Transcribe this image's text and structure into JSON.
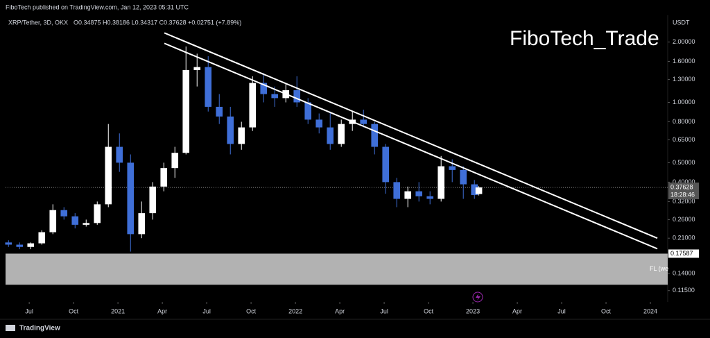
{
  "header": {
    "publisher": "FiboTech published on TradingView.com, Jan 12, 2023 05:31 UTC",
    "footer": "TradingView"
  },
  "chart_data": {
    "type": "candlestick",
    "title": "XRP/Tether, 3D, OKX",
    "ohlc_text": "O0.34875 H0.38186 L0.34317 C0.37628 +0.02751 (+7.89%)",
    "watermark": "FiboTech_Trade",
    "y_unit": "USDT",
    "log_scale": true,
    "up_color": "#ffffff",
    "down_color": "#3f6fd8",
    "x": [
      4.6,
      5.35,
      6.1,
      6.85,
      7.6,
      8.35,
      9.1,
      9.85,
      10.6,
      11.35,
      12.1,
      12.85,
      13.6,
      14.35,
      15.1,
      15.85,
      16.6,
      17.35,
      18.1,
      18.85,
      19.6,
      20.35,
      21.1,
      21.85,
      22.6,
      23.35,
      24.1,
      24.85,
      25.6,
      26.35,
      27.1,
      27.85,
      28.6,
      29.35,
      30.1,
      30.85,
      31.6,
      32.35,
      33.1,
      33.85,
      34.6,
      35.35,
      36.1,
      36.4
    ],
    "open": [
      0.2,
      0.195,
      0.19,
      0.198,
      0.225,
      0.29,
      0.27,
      0.245,
      0.25,
      0.31,
      0.6,
      0.5,
      0.22,
      0.28,
      0.38,
      0.47,
      0.56,
      1.45,
      1.5,
      0.95,
      0.85,
      0.62,
      0.75,
      1.25,
      1.1,
      1.05,
      1.15,
      1.0,
      0.82,
      0.75,
      0.62,
      0.78,
      0.82,
      0.78,
      0.6,
      0.4,
      0.33,
      0.36,
      0.34,
      0.33,
      0.48,
      0.46,
      0.39,
      0.34875
    ],
    "high": [
      0.205,
      0.2,
      0.2,
      0.23,
      0.31,
      0.3,
      0.28,
      0.26,
      0.32,
      0.78,
      0.7,
      0.55,
      0.32,
      0.4,
      0.5,
      0.6,
      1.9,
      1.75,
      1.7,
      1.1,
      0.95,
      0.8,
      1.35,
      1.4,
      1.2,
      1.25,
      1.35,
      1.05,
      0.88,
      0.9,
      0.82,
      0.9,
      0.92,
      0.8,
      0.62,
      0.42,
      0.38,
      0.4,
      0.36,
      0.54,
      0.52,
      0.48,
      0.41,
      0.38186
    ],
    "low": [
      0.19,
      0.185,
      0.185,
      0.195,
      0.22,
      0.26,
      0.235,
      0.24,
      0.245,
      0.3,
      0.45,
      0.18,
      0.21,
      0.26,
      0.36,
      0.42,
      0.55,
      1.2,
      0.9,
      0.78,
      0.55,
      0.58,
      0.72,
      1.0,
      0.95,
      1.0,
      0.95,
      0.78,
      0.7,
      0.58,
      0.6,
      0.72,
      0.75,
      0.55,
      0.35,
      0.3,
      0.3,
      0.32,
      0.31,
      0.32,
      0.4,
      0.33,
      0.33,
      0.34317
    ],
    "close": [
      0.195,
      0.19,
      0.198,
      0.225,
      0.29,
      0.27,
      0.245,
      0.25,
      0.31,
      0.6,
      0.5,
      0.22,
      0.28,
      0.38,
      0.47,
      0.56,
      1.45,
      1.5,
      0.95,
      0.85,
      0.62,
      0.75,
      1.25,
      1.1,
      1.05,
      1.15,
      1.0,
      0.82,
      0.75,
      0.62,
      0.78,
      0.82,
      0.78,
      0.6,
      0.4,
      0.33,
      0.36,
      0.34,
      0.33,
      0.48,
      0.46,
      0.39,
      0.345,
      0.37628
    ],
    "last_price": {
      "value": 0.37628,
      "label": "0.37628"
    },
    "countdown": "18:28:46",
    "trendlines": [
      {
        "x": [
          15.14,
          48.47
        ],
        "y": [
          2.22,
          0.21
        ]
      },
      {
        "x": [
          15.14,
          48.47
        ],
        "y": [
          1.97,
          0.186
        ]
      }
    ],
    "zone": {
      "top": {
        "value": 0.17587,
        "label": "0.17587"
      },
      "bottom": 0.123,
      "label": "FL (we"
    },
    "xlim": [
      4.4,
      49.17
    ],
    "ylim": [
      0.101,
      2.72
    ],
    "xticks": [
      {
        "value": 6,
        "label": "Jul"
      },
      {
        "value": 9,
        "label": "Oct"
      },
      {
        "value": 12,
        "label": "2021"
      },
      {
        "value": 15,
        "label": "Apr"
      },
      {
        "value": 18,
        "label": "Jul"
      },
      {
        "value": 21,
        "label": "Oct"
      },
      {
        "value": 24,
        "label": "2022"
      },
      {
        "value": 27,
        "label": "Apr"
      },
      {
        "value": 30,
        "label": "Jul"
      },
      {
        "value": 33,
        "label": "Oct"
      },
      {
        "value": 36,
        "label": "2023"
      },
      {
        "value": 39,
        "label": "Apr"
      },
      {
        "value": 42,
        "label": "Jul"
      },
      {
        "value": 45,
        "label": "Oct"
      },
      {
        "value": 48,
        "label": "2024"
      }
    ],
    "yticks": [
      {
        "value": 2,
        "label": "2.00000"
      },
      {
        "value": 1.6,
        "label": "1.60000"
      },
      {
        "value": 1.3,
        "label": "1.30000"
      },
      {
        "value": 1,
        "label": "1.00000"
      },
      {
        "value": 0.8,
        "label": "0.80000"
      },
      {
        "value": 0.65,
        "label": "0.65000"
      },
      {
        "value": 0.5,
        "label": "0.50000"
      },
      {
        "value": 0.4,
        "label": "0.40000"
      },
      {
        "value": 0.32,
        "label": "0.32000"
      },
      {
        "value": 0.26,
        "label": "0.26000"
      },
      {
        "value": 0.21,
        "label": "0.21000"
      },
      {
        "value": 0.14,
        "label": "0.14000"
      },
      {
        "value": 0.115,
        "label": "0.11500"
      }
    ]
  }
}
